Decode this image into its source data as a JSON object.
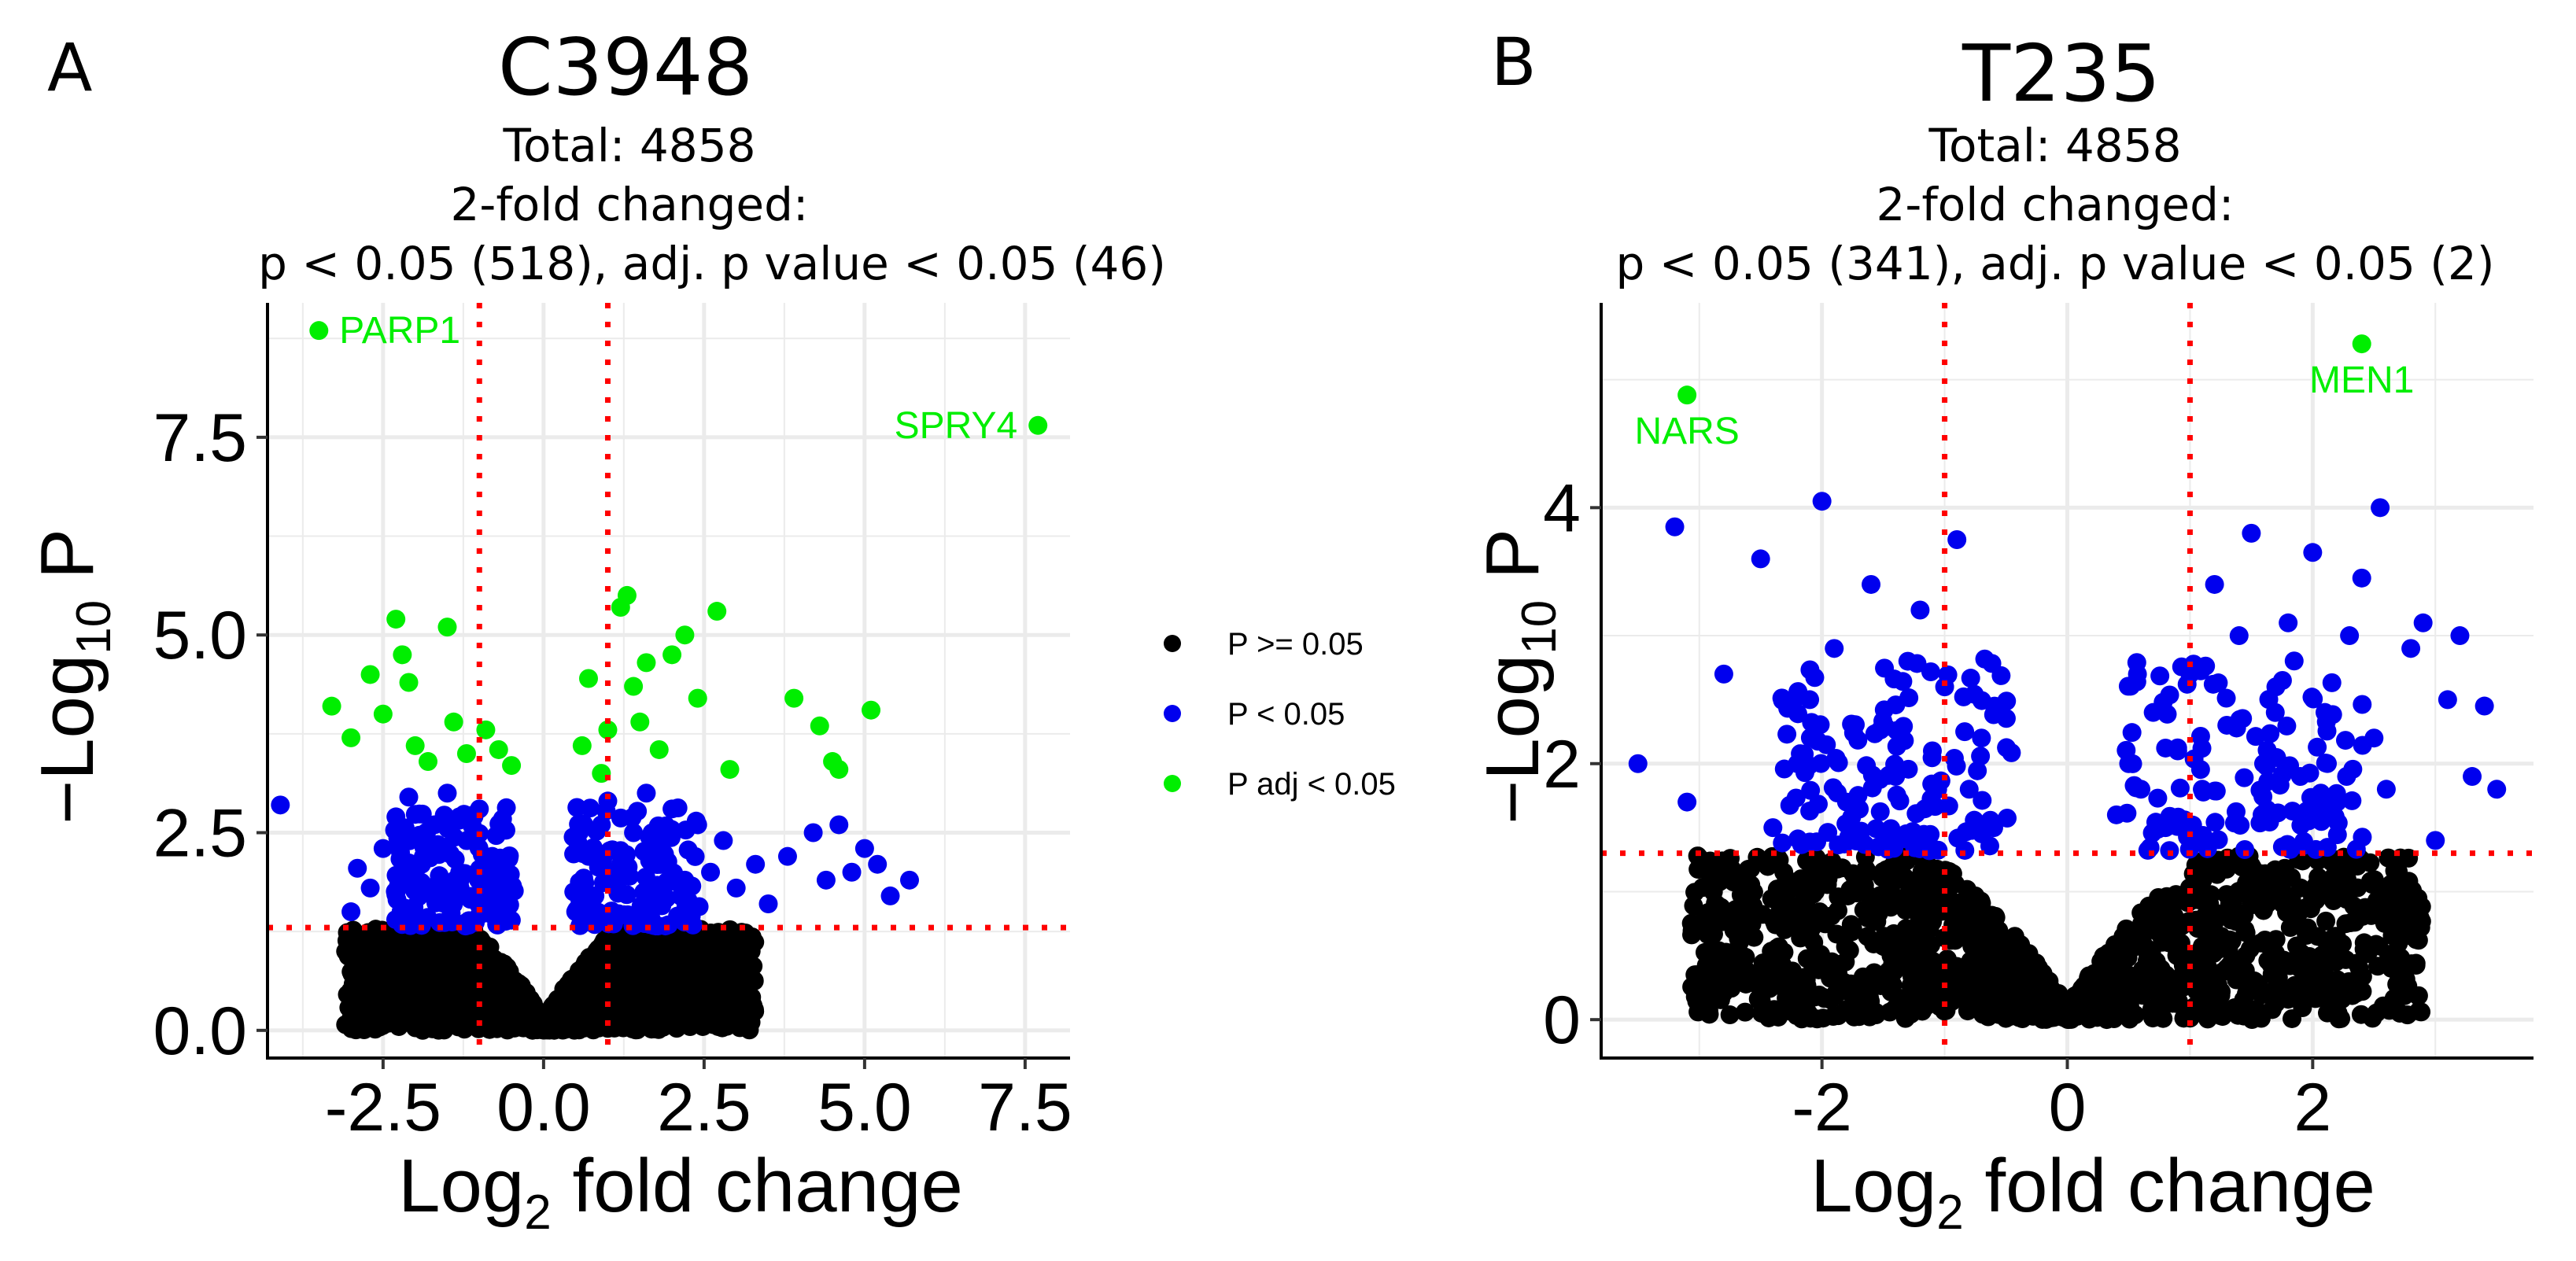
{
  "chart_data": [
    {
      "type": "scatter",
      "panel": "A",
      "title": "C3948",
      "subtitle_lines": [
        "Total: 4858",
        "2-fold changed:",
        "p < 0.05 (518), adj. p value < 0.05 (46)"
      ],
      "xlabel_main": "Log",
      "xlabel_sub": "2",
      "xlabel_tail": " fold change",
      "ylabel_pre": "−Log",
      "ylabel_sub": "10",
      "ylabel_tail": " P",
      "xlim": [
        -4.3,
        8.2
      ],
      "ylim": [
        -0.35,
        9.2
      ],
      "xticks": [
        -2.5,
        0.0,
        2.5,
        5.0,
        7.5
      ],
      "xtick_labels": [
        "-2.5",
        "0.0",
        "2.5",
        "5.0",
        "7.5"
      ],
      "yticks": [
        0.0,
        2.5,
        5.0,
        7.5
      ],
      "ytick_labels": [
        "0.0",
        "2.5",
        "5.0",
        "7.5"
      ],
      "grid": true,
      "fc_cutoff_lines": [
        -1,
        1
      ],
      "p_cutoff_line": 1.3,
      "black_envelope": {
        "cutoff": 1.3,
        "x_min": -3.1,
        "x_max": 3.3
      },
      "blue_points": [
        [
          -4.1,
          2.85
        ],
        [
          -3.0,
          1.5
        ],
        [
          -2.9,
          2.05
        ],
        [
          -2.7,
          1.8
        ],
        [
          -2.5,
          2.3
        ],
        [
          -2.3,
          2.7
        ],
        [
          -2.1,
          2.95
        ],
        [
          -1.9,
          2.1
        ],
        [
          -1.7,
          2.6
        ],
        [
          -1.5,
          3.0
        ],
        [
          -1.3,
          1.9
        ],
        [
          -1.2,
          2.4
        ],
        [
          -1.0,
          2.8
        ],
        [
          -0.9,
          1.6
        ],
        [
          -0.8,
          2.2
        ],
        [
          -0.7,
          1.8
        ],
        [
          -0.6,
          1.5
        ],
        [
          0.5,
          1.5
        ],
        [
          0.6,
          1.9
        ],
        [
          0.7,
          2.2
        ],
        [
          0.8,
          1.7
        ],
        [
          0.9,
          2.6
        ],
        [
          1.0,
          2.9
        ],
        [
          1.2,
          2.1
        ],
        [
          1.4,
          2.5
        ],
        [
          1.6,
          3.0
        ],
        [
          1.8,
          2.3
        ],
        [
          2.0,
          2.8
        ],
        [
          2.2,
          1.9
        ],
        [
          2.4,
          2.6
        ],
        [
          2.6,
          2.0
        ],
        [
          2.8,
          2.4
        ],
        [
          3.0,
          1.8
        ],
        [
          3.3,
          2.1
        ],
        [
          3.5,
          1.6
        ],
        [
          3.8,
          2.2
        ],
        [
          4.2,
          2.5
        ],
        [
          4.4,
          1.9
        ],
        [
          4.6,
          2.6
        ],
        [
          4.8,
          2.0
        ],
        [
          5.0,
          2.3
        ],
        [
          5.2,
          2.1
        ],
        [
          5.4,
          1.7
        ],
        [
          5.7,
          1.9
        ]
      ],
      "green_points": [
        [
          -3.3,
          4.1
        ],
        [
          -3.0,
          3.7
        ],
        [
          -2.7,
          4.5
        ],
        [
          -2.5,
          4.0
        ],
        [
          -2.3,
          5.2
        ],
        [
          -2.2,
          4.75
        ],
        [
          -2.1,
          4.4
        ],
        [
          -2.0,
          3.6
        ],
        [
          -1.8,
          3.4
        ],
        [
          -1.5,
          5.1
        ],
        [
          -1.4,
          3.9
        ],
        [
          -1.2,
          3.5
        ],
        [
          -0.9,
          3.8
        ],
        [
          -0.7,
          3.55
        ],
        [
          -0.5,
          3.35
        ],
        [
          0.6,
          3.6
        ],
        [
          0.7,
          4.45
        ],
        [
          0.9,
          3.25
        ],
        [
          1.0,
          3.8
        ],
        [
          1.2,
          5.35
        ],
        [
          1.3,
          5.5
        ],
        [
          1.4,
          4.35
        ],
        [
          1.5,
          3.9
        ],
        [
          1.6,
          4.65
        ],
        [
          1.8,
          3.55
        ],
        [
          2.0,
          4.75
        ],
        [
          2.2,
          5.0
        ],
        [
          2.4,
          4.2
        ],
        [
          2.7,
          5.3
        ],
        [
          2.9,
          3.3
        ],
        [
          3.9,
          4.2
        ],
        [
          4.3,
          3.85
        ],
        [
          4.5,
          3.4
        ],
        [
          4.6,
          3.3
        ],
        [
          5.1,
          4.05
        ]
      ],
      "label_points": [
        {
          "x": -3.5,
          "y": 8.85,
          "label": "PARP1",
          "anchor": "start"
        },
        {
          "x": 7.7,
          "y": 7.65,
          "label": "SPRY4",
          "anchor": "end"
        }
      ]
    },
    {
      "type": "scatter",
      "panel": "B",
      "title": "T235",
      "subtitle_lines": [
        "Total: 4858",
        "2-fold changed:",
        "p < 0.05 (341), adj. p value < 0.05 (2)"
      ],
      "xlabel_main": "Log",
      "xlabel_sub": "2",
      "xlabel_tail": " fold change",
      "ylabel_pre": "−Log",
      "ylabel_sub": "10",
      "ylabel_tail": " P",
      "xlim": [
        -3.8,
        3.8
      ],
      "ylim": [
        -0.3,
        5.6
      ],
      "xticks": [
        -2,
        0,
        2
      ],
      "xtick_labels": [
        "-2",
        "0",
        "2"
      ],
      "yticks": [
        0,
        2,
        4
      ],
      "ytick_labels": [
        "0",
        "2",
        "4"
      ],
      "grid": true,
      "fc_cutoff_lines": [
        -1,
        1
      ],
      "p_cutoff_line": 1.3,
      "black_envelope": {
        "cutoff": 1.3,
        "x_min": -3.1,
        "x_max": 2.9
      },
      "blue_points": [
        [
          -3.5,
          2.0
        ],
        [
          -3.2,
          3.85
        ],
        [
          -3.1,
          1.7
        ],
        [
          -2.8,
          2.7
        ],
        [
          -2.5,
          3.6
        ],
        [
          -2.4,
          1.5
        ],
        [
          -2.2,
          2.0
        ],
        [
          -2.1,
          2.5
        ],
        [
          -2.0,
          4.05
        ],
        [
          -1.9,
          2.9
        ],
        [
          -1.8,
          1.7
        ],
        [
          -1.6,
          3.4
        ],
        [
          -1.5,
          2.3
        ],
        [
          -1.4,
          1.9
        ],
        [
          -1.3,
          2.8
        ],
        [
          -1.2,
          3.2
        ],
        [
          -1.1,
          2.1
        ],
        [
          -1.0,
          2.6
        ],
        [
          -0.9,
          3.75
        ],
        [
          -0.8,
          1.8
        ],
        [
          -0.7,
          2.2
        ],
        [
          -0.6,
          1.5
        ],
        [
          0.4,
          1.6
        ],
        [
          0.5,
          2.0
        ],
        [
          0.6,
          1.8
        ],
        [
          0.7,
          2.4
        ],
        [
          0.8,
          1.5
        ],
        [
          0.9,
          2.1
        ],
        [
          1.0,
          2.7
        ],
        [
          1.1,
          1.8
        ],
        [
          1.2,
          3.4
        ],
        [
          1.3,
          2.3
        ],
        [
          1.4,
          3.0
        ],
        [
          1.5,
          3.8
        ],
        [
          1.6,
          2.0
        ],
        [
          1.7,
          2.6
        ],
        [
          1.8,
          3.1
        ],
        [
          1.9,
          1.9
        ],
        [
          2.0,
          3.65
        ],
        [
          2.1,
          2.4
        ],
        [
          2.2,
          1.7
        ],
        [
          2.3,
          3.0
        ],
        [
          2.4,
          3.45
        ],
        [
          2.5,
          2.2
        ],
        [
          2.55,
          4.0
        ],
        [
          2.6,
          1.8
        ],
        [
          2.8,
          2.9
        ],
        [
          2.9,
          3.1
        ],
        [
          3.0,
          1.4
        ],
        [
          3.1,
          2.5
        ],
        [
          3.2,
          3.0
        ],
        [
          3.3,
          1.9
        ],
        [
          3.4,
          2.45
        ],
        [
          3.5,
          1.8
        ]
      ],
      "green_points": [],
      "label_points": [
        {
          "x": -3.1,
          "y": 4.88,
          "label": "NARS",
          "anchor": "middle-below"
        },
        {
          "x": 2.4,
          "y": 5.28,
          "label": "MEN1",
          "anchor": "middle-below"
        }
      ]
    }
  ],
  "legend": {
    "items": [
      {
        "label": "P >= 0.05",
        "color": "#000000"
      },
      {
        "label": "P < 0.05",
        "color": "#0000ee"
      },
      {
        "label": "P adj < 0.05",
        "color": "#00ee00"
      }
    ]
  },
  "colors": {
    "ns": "#000000",
    "p": "#0000ee",
    "padj": "#00ee00",
    "cutoff": "#ff0000",
    "grid": "#ebebeb"
  }
}
